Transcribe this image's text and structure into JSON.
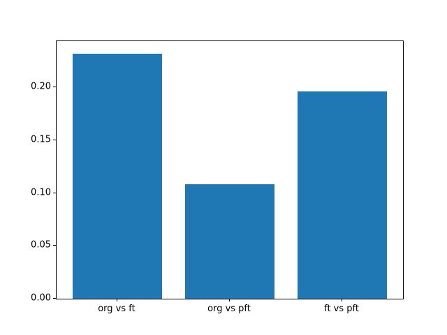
{
  "figure": {
    "background_color": "#ffffff",
    "frame_color": "#000000",
    "tick_text_color": "#000000"
  },
  "chart_data": {
    "type": "bar",
    "title": "",
    "xlabel": "",
    "ylabel": "",
    "categories": [
      "org vs ft",
      "org vs pft",
      "ft vs pft"
    ],
    "values": [
      0.232,
      0.108,
      0.196
    ],
    "bar_color": "#1f77b4",
    "bar_width_fraction": 0.8,
    "ylim": [
      0,
      0.2436
    ],
    "yticks": {
      "values": [
        0.0,
        0.05,
        0.1,
        0.15,
        0.2
      ],
      "labels": [
        "0.00",
        "0.05",
        "0.10",
        "0.15",
        "0.20"
      ]
    },
    "grid": false,
    "legend": "none"
  }
}
